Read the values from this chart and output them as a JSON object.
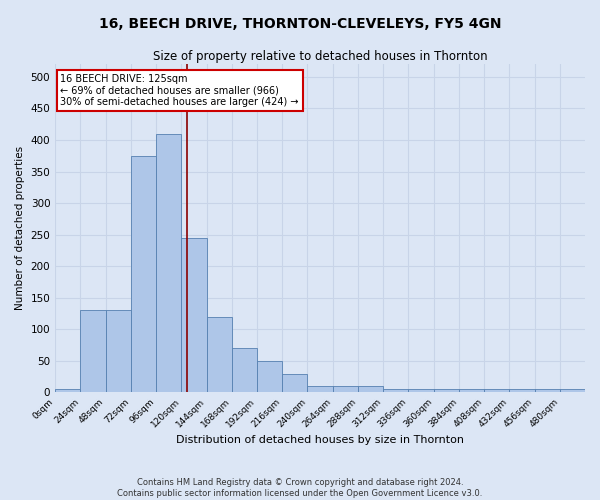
{
  "title1": "16, BEECH DRIVE, THORNTON-CLEVELEYS, FY5 4GN",
  "title2": "Size of property relative to detached houses in Thornton",
  "xlabel": "Distribution of detached houses by size in Thornton",
  "ylabel": "Number of detached properties",
  "footnote1": "Contains HM Land Registry data © Crown copyright and database right 2024.",
  "footnote2": "Contains public sector information licensed under the Open Government Licence v3.0.",
  "bin_labels": [
    "0sqm",
    "24sqm",
    "48sqm",
    "72sqm",
    "96sqm",
    "120sqm",
    "144sqm",
    "168sqm",
    "192sqm",
    "216sqm",
    "240sqm",
    "264sqm",
    "288sqm",
    "312sqm",
    "336sqm",
    "360sqm",
    "384sqm",
    "408sqm",
    "432sqm",
    "456sqm",
    "480sqm"
  ],
  "bin_edges": [
    0,
    24,
    48,
    72,
    96,
    120,
    144,
    168,
    192,
    216,
    240,
    264,
    288,
    312,
    336,
    360,
    384,
    408,
    432,
    456,
    480,
    504
  ],
  "bar_heights": [
    5,
    130,
    130,
    375,
    410,
    245,
    120,
    70,
    50,
    30,
    10,
    10,
    10,
    5,
    5,
    5,
    5,
    5,
    5,
    5,
    5
  ],
  "bar_color": "#aec6e8",
  "bar_edge_color": "#5580b0",
  "grid_color": "#c8d4e8",
  "bg_color": "#dce6f5",
  "vline_x": 125,
  "vline_color": "#8b0000",
  "annotation_text": "16 BEECH DRIVE: 125sqm\n← 69% of detached houses are smaller (966)\n30% of semi-detached houses are larger (424) →",
  "annotation_box_color": "#ffffff",
  "annotation_box_edge": "#cc0000",
  "ylim": [
    0,
    520
  ],
  "yticks": [
    0,
    50,
    100,
    150,
    200,
    250,
    300,
    350,
    400,
    450,
    500
  ]
}
